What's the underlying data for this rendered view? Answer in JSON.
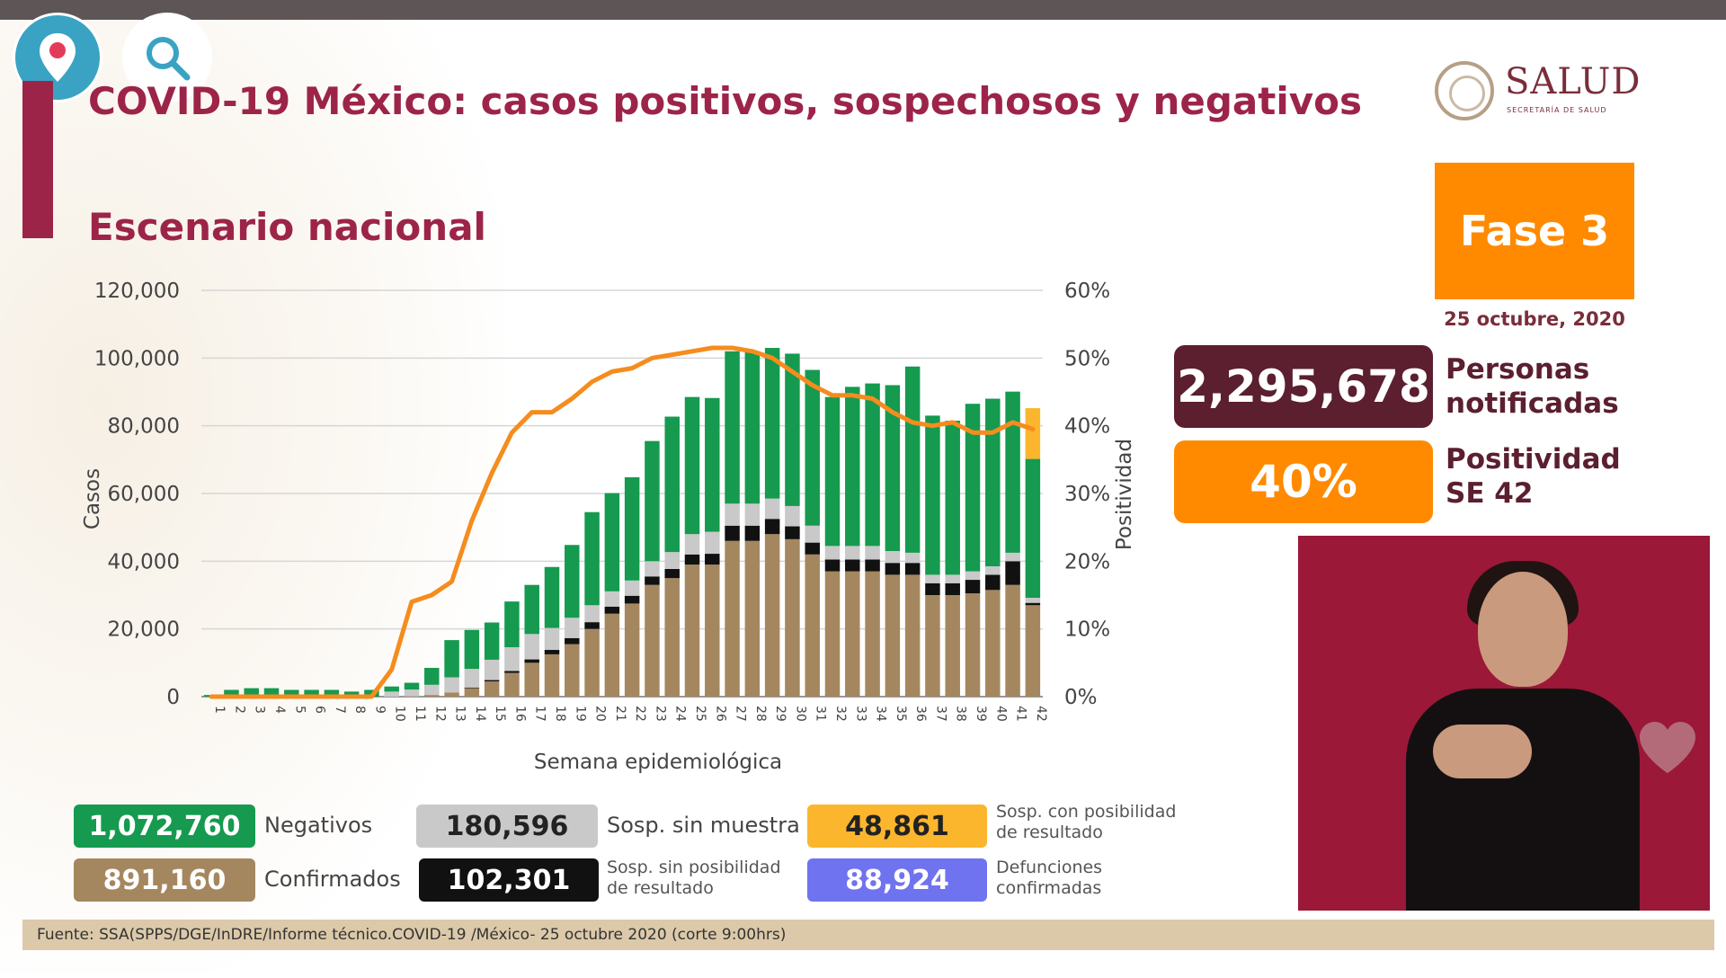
{
  "header": {
    "title": "COVID-19 México: casos positivos, sospechosos y negativos",
    "subtitle": "Escenario nacional"
  },
  "icons": {
    "pin": "location-pin-icon",
    "search": "search-icon",
    "heart": "heart-icon"
  },
  "logo": {
    "text": "SALUD",
    "small": "SECRETARÍA DE SALUD"
  },
  "phase": {
    "label": "Fase 3",
    "date": "25 octubre, 2020"
  },
  "stats": {
    "notified_value": "2,295,678",
    "notified_label_1": "Personas",
    "notified_label_2": "notificadas",
    "positivity_value": "40%",
    "positivity_label_1": "Positividad",
    "positivity_label_2": "SE 42"
  },
  "legend": {
    "negativos_value": "1,072,760",
    "negativos_label": "Negativos",
    "sin_muestra_value": "180,596",
    "sin_muestra_label": "Sosp. sin muestra",
    "con_posibilidad_value": "48,861",
    "con_posibilidad_label_1": "Sosp. con posibilidad",
    "con_posibilidad_label_2": "de resultado",
    "confirmados_value": "891,160",
    "confirmados_label": "Confirmados",
    "sin_posibilidad_value": "102,301",
    "sin_posibilidad_label_1": "Sosp. sin posibilidad",
    "sin_posibilidad_label_2": "de resultado",
    "defunciones_value": "88,924",
    "defunciones_label_1": "Defunciones",
    "defunciones_label_2": "confirmadas"
  },
  "source": "Fuente: SSA(SPPS/DGE/InDRE/Informe técnico.COVID-19 /México- 25 octubre 2020 (corte 9:00hrs)",
  "colors": {
    "confirmados": "#a5875f",
    "sin_posibilidad": "#111111",
    "sin_muestra": "#c9c9c9",
    "negativos": "#159a4f",
    "con_posibilidad": "#fbb62d",
    "positividad": "#f58c1e",
    "defunciones": "#6f73f0",
    "brand": "#9d2449"
  },
  "chart_data": {
    "type": "bar",
    "stacked": true,
    "xlabel": "Semana epidemiológica",
    "ylabel": "Casos",
    "y2label": "Positividad",
    "ylim": [
      0,
      120000
    ],
    "y2lim": [
      0,
      60
    ],
    "yticks": [
      "0",
      "20,000",
      "40,000",
      "60,000",
      "80,000",
      "100,000",
      "120,000"
    ],
    "y2ticks": [
      "0%",
      "10%",
      "20%",
      "30%",
      "40%",
      "50%",
      "60%"
    ],
    "grid": true,
    "categories": [
      "1",
      "2",
      "3",
      "4",
      "5",
      "6",
      "7",
      "8",
      "9",
      "10",
      "11",
      "12",
      "13",
      "14",
      "15",
      "16",
      "17",
      "18",
      "19",
      "20",
      "21",
      "22",
      "23",
      "24",
      "25",
      "26",
      "27",
      "28",
      "29",
      "30",
      "31",
      "32",
      "33",
      "34",
      "35",
      "36",
      "37",
      "38",
      "39",
      "40",
      "41",
      "42"
    ],
    "series": [
      {
        "name": "Confirmados",
        "color": "#a5875f",
        "values": [
          0,
          0,
          0,
          0,
          0,
          0,
          0,
          0,
          0,
          0,
          100,
          500,
          1200,
          2500,
          4500,
          7000,
          10000,
          12500,
          15500,
          20000,
          24500,
          27500,
          33000,
          35000,
          39000,
          39000,
          46000,
          46000,
          48000,
          46500,
          42000,
          37000,
          37000,
          37000,
          36000,
          36000,
          30000,
          30000,
          30500,
          31500,
          33000,
          27000
        ]
      },
      {
        "name": "Sosp. sin posibilidad de resultado",
        "color": "#111111",
        "values": [
          0,
          0,
          0,
          0,
          0,
          0,
          0,
          0,
          0,
          0,
          0,
          0,
          0,
          200,
          400,
          600,
          1000,
          1300,
          1800,
          2000,
          2100,
          2300,
          2500,
          2700,
          3000,
          3200,
          4500,
          4500,
          4500,
          3800,
          3500,
          3500,
          3500,
          3500,
          3500,
          3500,
          3500,
          3500,
          4000,
          4500,
          7000,
          700
        ]
      },
      {
        "name": "Sosp. sin muestra",
        "color": "#c9c9c9",
        "values": [
          0,
          0,
          0,
          0,
          0,
          0,
          0,
          0,
          0,
          1500,
          2000,
          3000,
          4500,
          5500,
          6000,
          7000,
          7500,
          6500,
          6000,
          5000,
          4500,
          4500,
          4500,
          5000,
          6000,
          6500,
          6500,
          6500,
          6000,
          6000,
          5000,
          4000,
          4000,
          4000,
          3500,
          3000,
          2500,
          2500,
          2500,
          2500,
          2500,
          1500
        ]
      },
      {
        "name": "Negativos",
        "color": "#159a4f",
        "values": [
          500,
          2000,
          2500,
          2500,
          2000,
          2000,
          2000,
          1500,
          2000,
          1500,
          2000,
          5000,
          11000,
          11500,
          11000,
          13500,
          14500,
          18000,
          21500,
          27500,
          29000,
          30500,
          35500,
          40000,
          40500,
          39500,
          45000,
          45000,
          44500,
          45000,
          46000,
          44000,
          47000,
          48000,
          49000,
          55000,
          47000,
          45500,
          49500,
          49500,
          47500,
          41000
        ]
      },
      {
        "name": "Sosp. con posibilidad de resultado",
        "color": "#fbb62d",
        "values": [
          0,
          0,
          0,
          0,
          0,
          0,
          0,
          0,
          0,
          0,
          0,
          0,
          0,
          0,
          0,
          0,
          0,
          0,
          0,
          0,
          0,
          0,
          0,
          0,
          0,
          0,
          0,
          0,
          0,
          0,
          0,
          0,
          0,
          0,
          0,
          0,
          0,
          0,
          0,
          0,
          200,
          15000
        ]
      },
      {
        "name": "Positividad",
        "type": "line",
        "axis": "y2",
        "color": "#f58c1e",
        "values": [
          0,
          0,
          0,
          0,
          0,
          0,
          0,
          0,
          0,
          4,
          14,
          15,
          17,
          26,
          33,
          39,
          42,
          42,
          44,
          46.5,
          48,
          48.5,
          50,
          50.5,
          51,
          51.5,
          51.5,
          51,
          50,
          48,
          46,
          44.5,
          44.5,
          44,
          42,
          40.5,
          40,
          40.5,
          39,
          39,
          40.5,
          39.5
        ]
      }
    ]
  }
}
